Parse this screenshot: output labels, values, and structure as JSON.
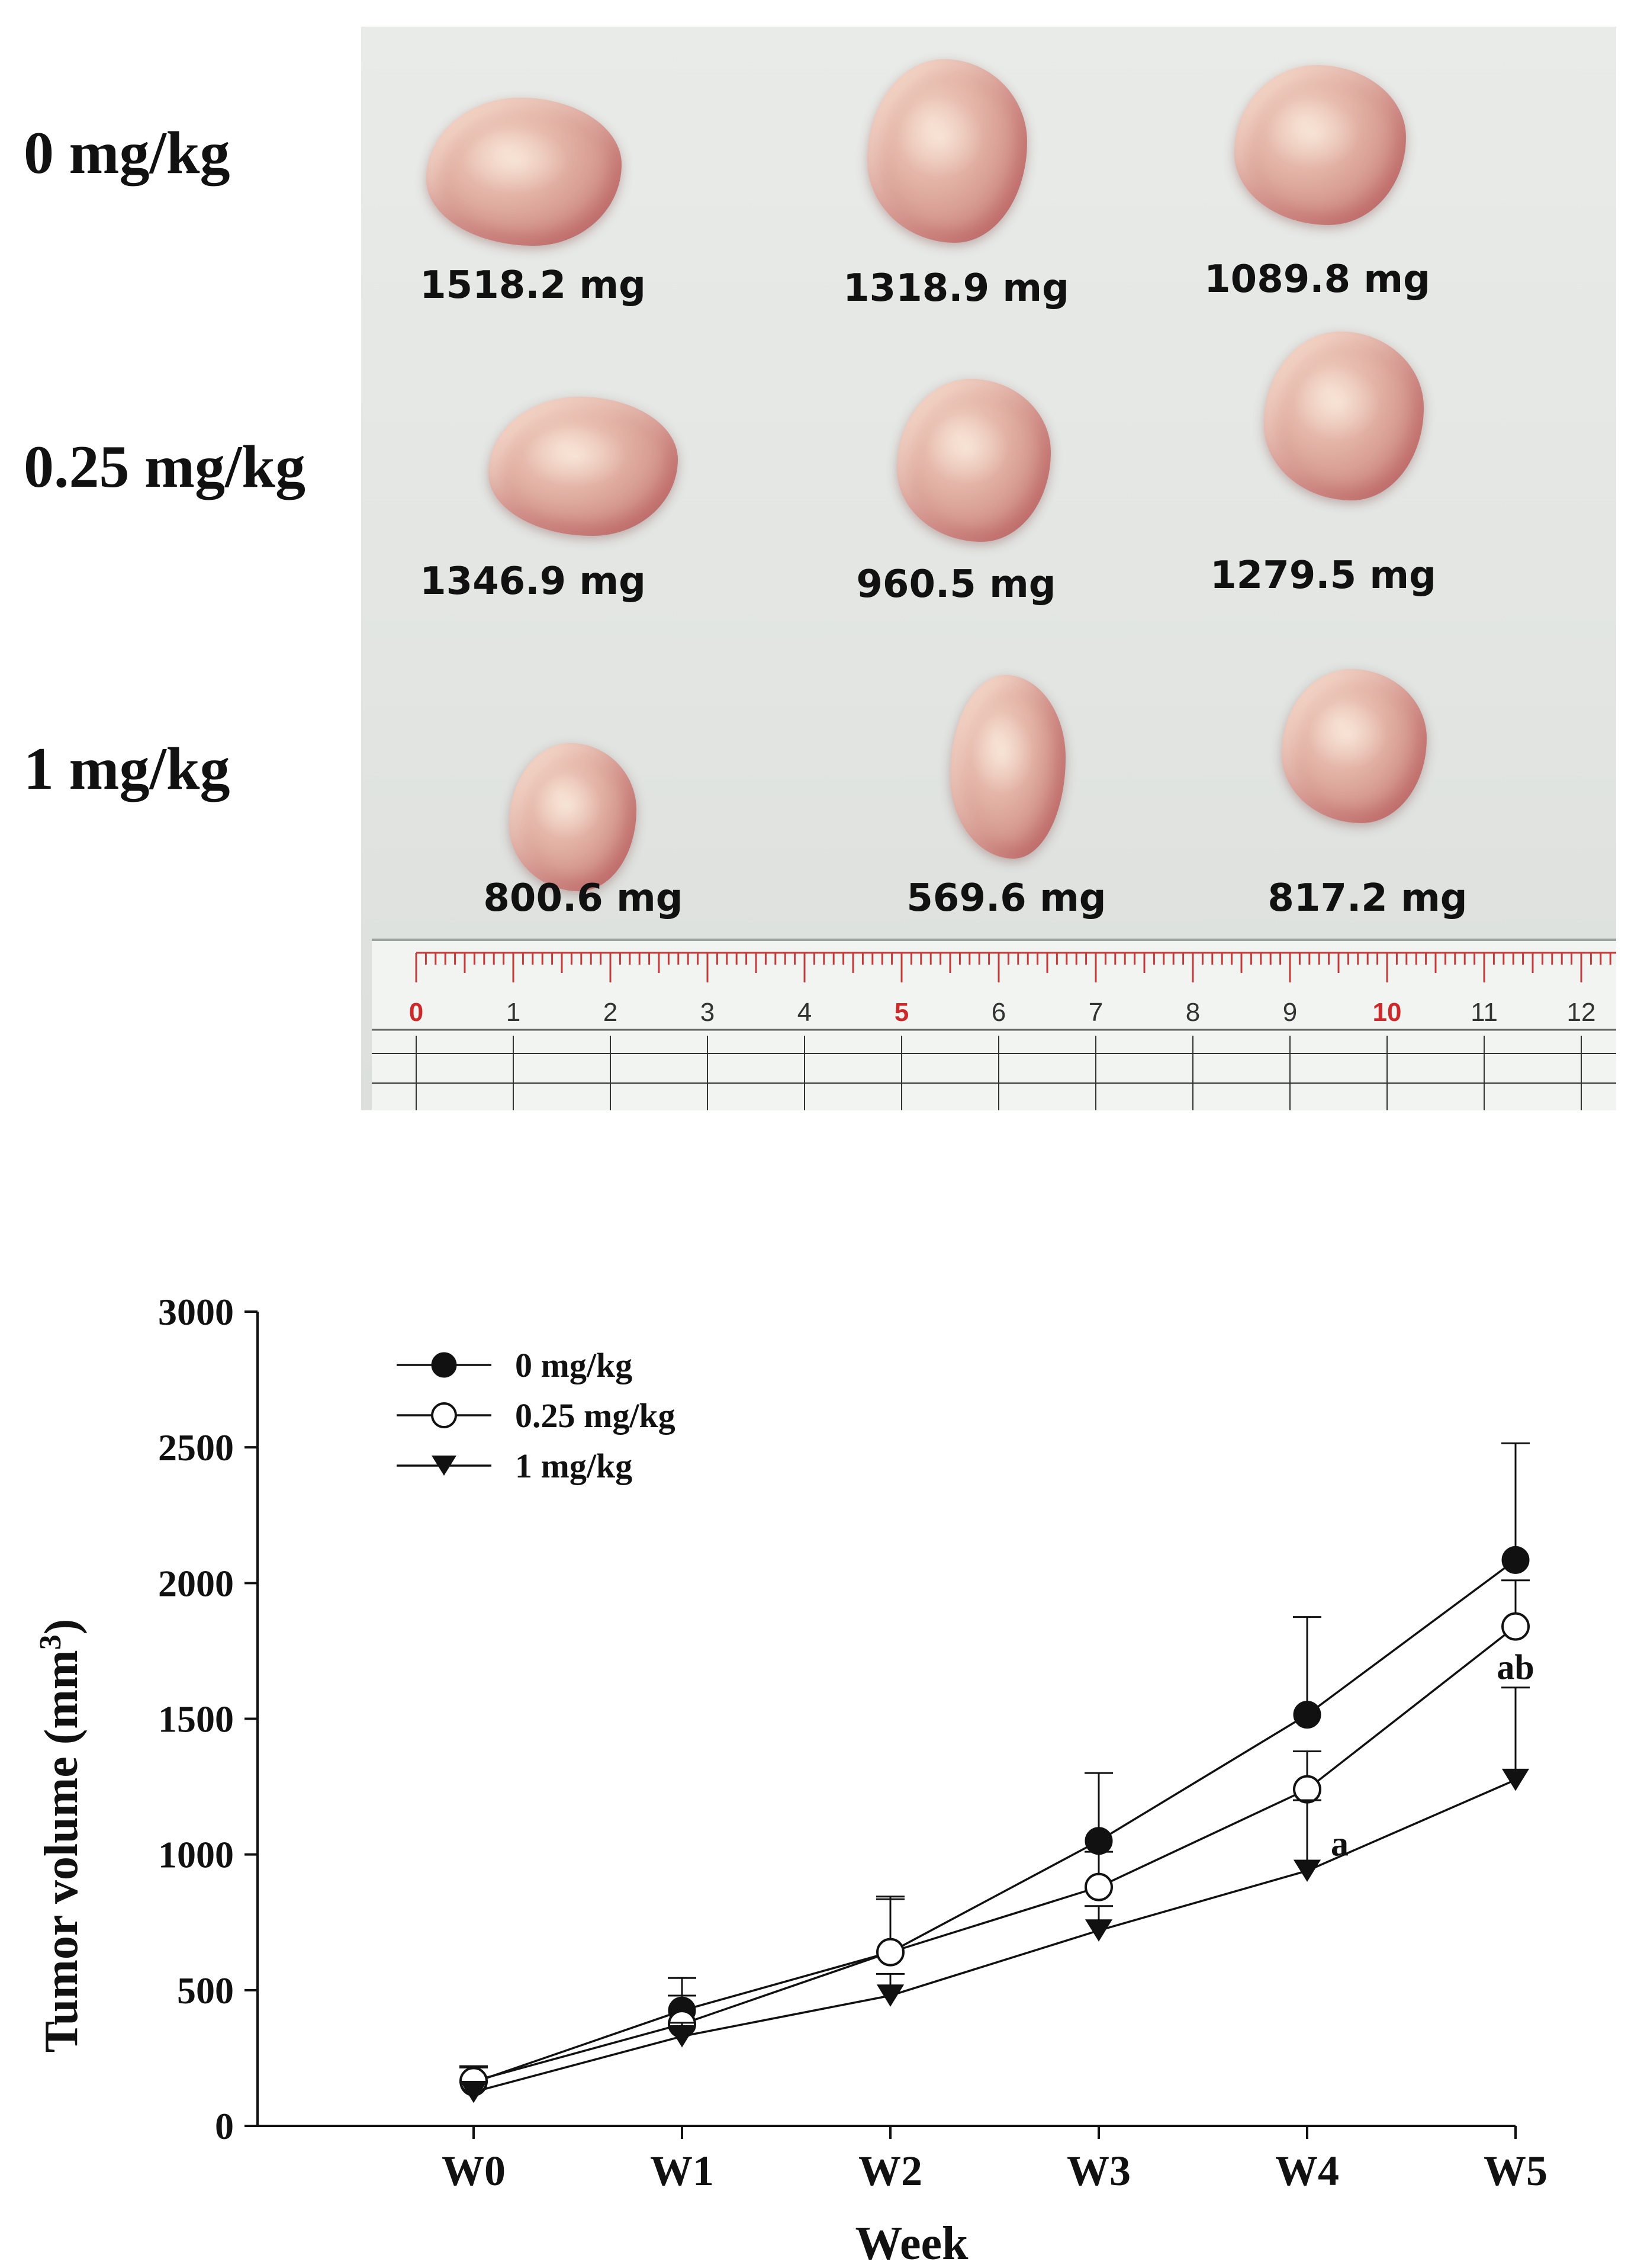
{
  "photo": {
    "dose_labels": [
      "0 mg/kg",
      "0.25 mg/kg",
      "1 mg/kg"
    ],
    "weights": [
      [
        "1518.2 mg",
        "1318.9 mg",
        "1089.8 mg"
      ],
      [
        "1346.9 mg",
        "960.5 mg",
        "1279.5 mg"
      ],
      [
        "800.6 mg",
        "569.6 mg",
        "817.2 mg"
      ]
    ],
    "ruler_numbers": [
      "0",
      "1",
      "2",
      "3",
      "4",
      "5",
      "6",
      "7",
      "8",
      "9",
      "10",
      "11",
      "12"
    ]
  },
  "chart_data": {
    "type": "line",
    "xlabel": "Week",
    "ylabel": "Tumor volume (mm",
    "ylabel_superscript": "3",
    "ylabel_close": ")",
    "categories": [
      "W0",
      "W1",
      "W2",
      "W3",
      "W4",
      "W5"
    ],
    "ylim": [
      0,
      3000
    ],
    "yticks": [
      "0",
      "500",
      "1000",
      "1500",
      "2000",
      "2500",
      "3000"
    ],
    "legend_position": "top-left",
    "series": [
      {
        "name": "0 mg/kg",
        "marker": "filled-circle",
        "values": [
          160,
          425,
          640,
          1050,
          1515,
          2085
        ],
        "err_upper": [
          215,
          545,
          845,
          1300,
          1875,
          2515
        ]
      },
      {
        "name": "0.25 mg/kg",
        "marker": "open-circle",
        "values": [
          165,
          375,
          640,
          880,
          1240,
          1840
        ],
        "err_upper": [
          220,
          480,
          835,
          1010,
          1380,
          2010
        ]
      },
      {
        "name": "1 mg/kg",
        "marker": "filled-triangle-down",
        "values": [
          125,
          330,
          480,
          720,
          940,
          1275
        ],
        "err_upper": [
          160,
          380,
          560,
          810,
          1200,
          1615
        ]
      }
    ],
    "annotations": [
      {
        "text": "a",
        "x": "W4",
        "y": 1040
      },
      {
        "text": "ab",
        "x": "W5",
        "y": 1690
      }
    ],
    "colors": {
      "line": "#111111",
      "open_marker_fill": "#ffffff"
    }
  }
}
